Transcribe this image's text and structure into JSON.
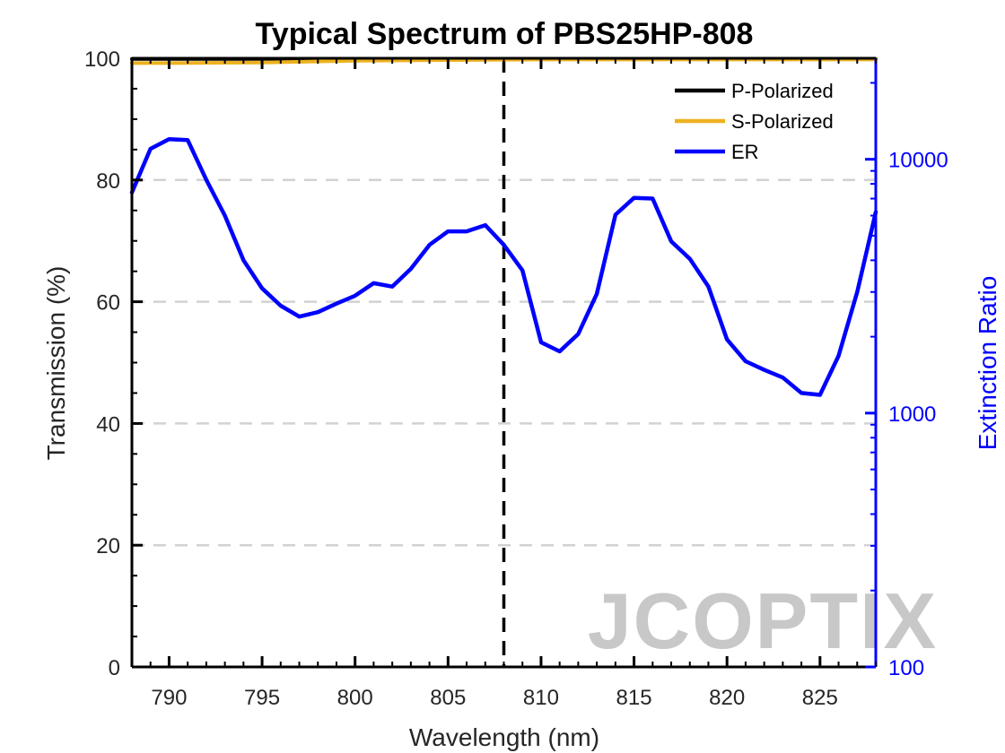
{
  "chart_data": {
    "type": "line",
    "title": "Typical Spectrum of PBS25HP-808",
    "xlabel": "Wavelength (nm)",
    "ylabel": "Transmission (%)",
    "y2label": "Extinction Ratio",
    "xlim": [
      788,
      828
    ],
    "ylim": [
      0,
      100
    ],
    "y2lim": [
      100,
      25000
    ],
    "y2scale": "log",
    "xticks": [
      790,
      795,
      800,
      805,
      810,
      815,
      820,
      825
    ],
    "yticks": [
      0,
      20,
      40,
      60,
      80,
      100
    ],
    "y2ticks": [
      100,
      1000,
      10000
    ],
    "x_tick_labels": [
      "790",
      "795",
      "800",
      "805",
      "810",
      "815",
      "820",
      "825"
    ],
    "y_tick_labels": [
      "0",
      "20",
      "40",
      "60",
      "80",
      "100"
    ],
    "y2_tick_labels": [
      "100",
      "1000",
      "10000"
    ],
    "grid": "horizontal dashed",
    "legend_position": "top-right",
    "reference_line": {
      "x": 808,
      "style": "dashed",
      "color": "#000000"
    },
    "series": [
      {
        "name": "P-Polarized",
        "color": "#000000",
        "axis": "left",
        "x": [
          788,
          792,
          796,
          800,
          804,
          808,
          812,
          816,
          820,
          824,
          828
        ],
        "y": [
          99.9,
          99.9,
          99.9,
          99.9,
          99.9,
          99.9,
          99.9,
          99.9,
          99.9,
          99.9,
          99.9
        ]
      },
      {
        "name": "S-Polarized",
        "color": "#EDB120",
        "axis": "left",
        "x": [
          788,
          790,
          795,
          800,
          805,
          810,
          815,
          820,
          825,
          828
        ],
        "y": [
          99.2,
          99.2,
          99.3,
          99.6,
          99.7,
          99.8,
          99.8,
          99.8,
          99.8,
          99.8
        ]
      },
      {
        "name": "ER",
        "color": "#0000FF",
        "axis": "right",
        "x": [
          788,
          789,
          790,
          791,
          792,
          793,
          794,
          795,
          796,
          797,
          798,
          799,
          800,
          801,
          802,
          803,
          804,
          805,
          806,
          807,
          808,
          809,
          810,
          811,
          812,
          813,
          814,
          815,
          816,
          817,
          818,
          819,
          820,
          821,
          822,
          823,
          824,
          825,
          826,
          827,
          828
        ],
        "y": [
          7400,
          11000,
          12000,
          11900,
          8300,
          6000,
          4000,
          3100,
          2650,
          2400,
          2500,
          2700,
          2900,
          3250,
          3150,
          3700,
          4600,
          5200,
          5200,
          5500,
          4600,
          3650,
          1900,
          1750,
          2050,
          2950,
          6050,
          7050,
          7000,
          4750,
          4050,
          3150,
          1950,
          1600,
          1480,
          1380,
          1200,
          1180,
          1680,
          3000,
          6200
        ]
      }
    ]
  },
  "watermark": "JCOPTIX"
}
